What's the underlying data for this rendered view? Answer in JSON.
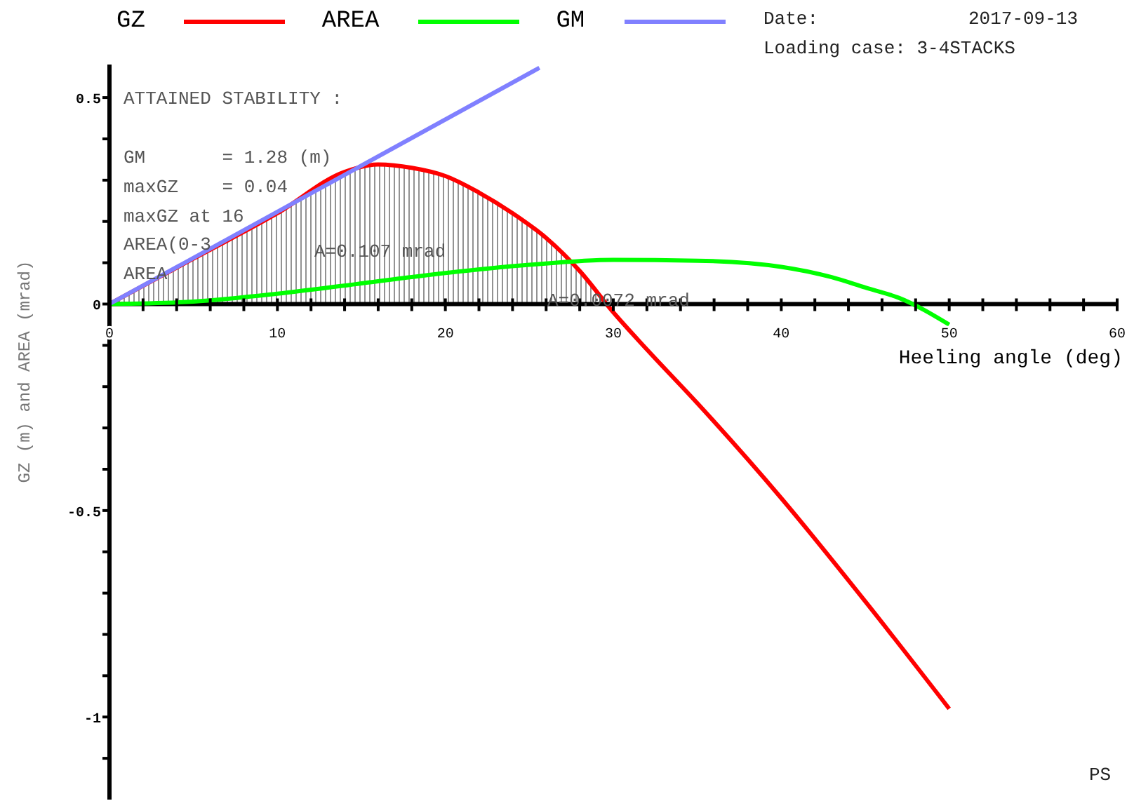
{
  "chart_data": {
    "type": "line",
    "xlabel": "Heeling angle (deg)",
    "ylabel": "GZ (m) and AREA (mrad)",
    "annotations": [
      "Date:",
      "2017-09-13",
      "Loading case: 3-4STACKS",
      "ATTAINED STABILITY :",
      "GM       = 1.28 (m)",
      "maxGZ    = 0.04",
      "maxGZ at 16",
      "AREA(0-3",
      "AREA",
      "A=0.107 mrad",
      "A=0.0072 mrad",
      "PS"
    ],
    "xlim": [
      0,
      60
    ],
    "xticks": [
      0,
      {
        "value": 2,
        "label": null
      },
      {
        "value": 4,
        "label": null
      },
      {
        "value": 6,
        "label": null
      },
      {
        "value": 8,
        "label": null
      },
      10,
      {
        "value": 12,
        "label": null
      },
      {
        "value": 14,
        "label": null
      },
      {
        "value": 16,
        "label": null
      },
      {
        "value": 18,
        "label": null
      },
      20,
      {
        "value": 22,
        "label": null
      },
      {
        "value": 24,
        "label": null
      },
      {
        "value": 26,
        "label": null
      },
      {
        "value": 28,
        "label": null
      },
      30,
      {
        "value": 32,
        "label": null
      },
      {
        "value": 34,
        "label": null
      },
      {
        "value": 36,
        "label": null
      },
      {
        "value": 38,
        "label": null
      },
      40,
      {
        "value": 42,
        "label": null
      },
      {
        "value": 44,
        "label": null
      },
      {
        "value": 46,
        "label": null
      },
      {
        "value": 48,
        "label": null
      },
      50,
      {
        "value": 52,
        "label": null
      },
      {
        "value": 54,
        "label": null
      },
      {
        "value": 56,
        "label": null
      },
      {
        "value": 58,
        "label": null
      },
      60
    ],
    "ylim": [
      -1.2,
      0.58
    ],
    "yticks": [
      {
        "value": -1.1,
        "label": null
      },
      -1,
      {
        "value": -0.9,
        "label": null
      },
      {
        "value": -0.8,
        "label": null
      },
      {
        "value": -0.7,
        "label": null
      },
      {
        "value": -0.6,
        "label": null
      },
      -0.5,
      {
        "value": -0.4,
        "label": null
      },
      {
        "value": -0.3,
        "label": null
      },
      {
        "value": -0.2,
        "label": null
      },
      {
        "value": -0.1,
        "label": null
      },
      0,
      {
        "value": 0.1,
        "label": null
      },
      {
        "value": 0.2,
        "label": null
      },
      {
        "value": 0.3,
        "label": null
      },
      {
        "value": 0.4,
        "label": null
      },
      0.5
    ],
    "grid": false,
    "legend": "top",
    "marker": "none",
    "line_style": "solid",
    "series": [
      {
        "name": "GZ",
        "type": "area",
        "color": "#ff0000",
        "x": [
          0,
          5,
          10,
          14,
          16,
          18,
          20,
          22,
          24,
          26,
          28,
          30,
          32,
          35,
          40,
          45,
          50
        ],
        "values": [
          0,
          0.11,
          0.22,
          0.32,
          0.338,
          0.33,
          0.31,
          0.27,
          0.22,
          0.16,
          0.08,
          -0.02,
          -0.11,
          -0.24,
          -0.47,
          -0.72,
          -0.98
        ]
      },
      {
        "name": "AREA",
        "color": "#00ff00",
        "x": [
          0,
          5,
          10,
          15,
          20,
          25,
          30,
          35,
          40,
          43,
          45,
          47,
          50
        ],
        "values": [
          0,
          0.006,
          0.025,
          0.05,
          0.075,
          0.095,
          0.107,
          0.105,
          0.09,
          0.065,
          0.04,
          0.015,
          -0.05
        ]
      },
      {
        "name": "GM",
        "color": "#8080ff",
        "x": [
          0,
          25.6
        ],
        "values": [
          0,
          0.572
        ]
      }
    ]
  }
}
